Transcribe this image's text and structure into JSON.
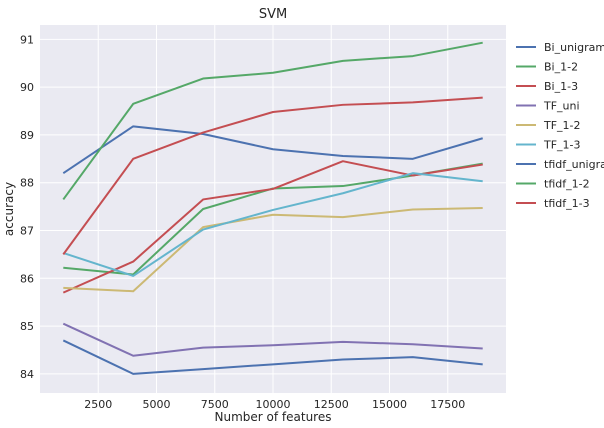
{
  "chart_data": {
    "type": "line",
    "title": "SVM",
    "xlabel": "Number of features",
    "ylabel": "accuracy",
    "xlim": [
      0,
      20000
    ],
    "ylim": [
      83.6,
      91.3
    ],
    "xticks": [
      2500,
      5000,
      7500,
      10000,
      12500,
      15000,
      17500
    ],
    "yticks": [
      84,
      85,
      86,
      87,
      88,
      89,
      90,
      91
    ],
    "grid": true,
    "legend_position": "right-outside",
    "x": [
      1000,
      4000,
      7000,
      10000,
      13000,
      16000,
      19000
    ],
    "series": [
      {
        "name": "Bi_unigram",
        "color": "#4c72b0",
        "values": [
          84.7,
          84.0,
          84.1,
          84.2,
          84.3,
          84.35,
          84.2
        ]
      },
      {
        "name": "Bi_1-2",
        "color": "#55a868",
        "values": [
          86.22,
          86.08,
          87.45,
          87.88,
          87.93,
          88.15,
          88.4
        ]
      },
      {
        "name": "Bi_1-3",
        "color": "#c44e52",
        "values": [
          85.7,
          86.35,
          87.65,
          87.87,
          88.45,
          88.15,
          88.38
        ]
      },
      {
        "name": "TF_uni",
        "color": "#8172b2",
        "values": [
          85.05,
          84.38,
          84.55,
          84.6,
          84.67,
          84.62,
          84.53
        ]
      },
      {
        "name": "TF_1-2",
        "color": "#ccb974",
        "values": [
          85.8,
          85.73,
          87.07,
          87.33,
          87.28,
          87.44,
          87.47
        ]
      },
      {
        "name": "TF_1-3",
        "color": "#64b5cd",
        "values": [
          86.53,
          86.05,
          87.02,
          87.43,
          87.78,
          88.2,
          88.03
        ]
      },
      {
        "name": "tfidf_unigram",
        "color": "#4c72b0",
        "values": [
          88.2,
          89.18,
          89.02,
          88.7,
          88.56,
          88.5,
          88.93
        ]
      },
      {
        "name": "tfidf_1-2",
        "color": "#55a868",
        "values": [
          87.65,
          89.65,
          90.18,
          90.3,
          90.55,
          90.65,
          90.93
        ]
      },
      {
        "name": "tfidf_1-3",
        "color": "#c44e52",
        "values": [
          86.5,
          88.5,
          89.05,
          89.48,
          89.63,
          89.68,
          89.78
        ]
      }
    ]
  }
}
